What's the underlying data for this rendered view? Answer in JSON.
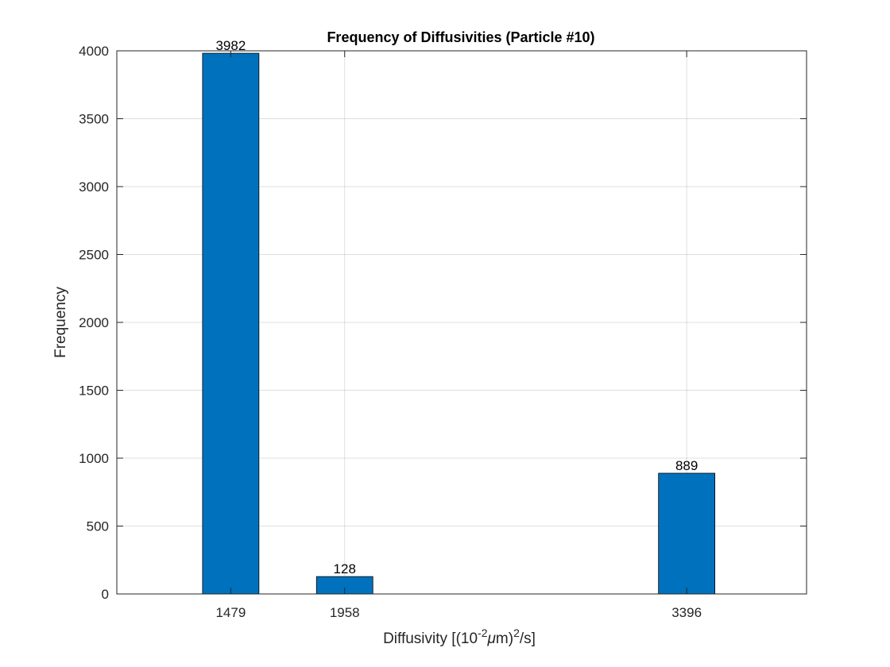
{
  "chart_data": {
    "type": "bar",
    "title": "Frequency of Diffusivities (Particle #10)",
    "xlabel": {
      "prefix": "Diffusivity [(10",
      "exp1": "-2",
      "mu": "μ",
      "middle": "m)",
      "exp2": "2",
      "suffix": "/s]"
    },
    "ylabel": "Frequency",
    "categories": [
      "1479",
      "1958",
      "3396"
    ],
    "x": [
      1479,
      1958,
      3396
    ],
    "values": [
      3982,
      128,
      889
    ],
    "data_labels": [
      "3982",
      "128",
      "889"
    ],
    "xlim": [
      1000,
      3900
    ],
    "ylim": [
      0,
      4000
    ],
    "yticks": [
      0,
      500,
      1000,
      1500,
      2000,
      2500,
      3000,
      3500,
      4000
    ],
    "ytick_labels": [
      "0",
      "500",
      "1000",
      "1500",
      "2000",
      "2500",
      "3000",
      "3500",
      "4000"
    ],
    "bar_width_data_units": 237,
    "grid": true,
    "bar_color": "#0072BD"
  }
}
